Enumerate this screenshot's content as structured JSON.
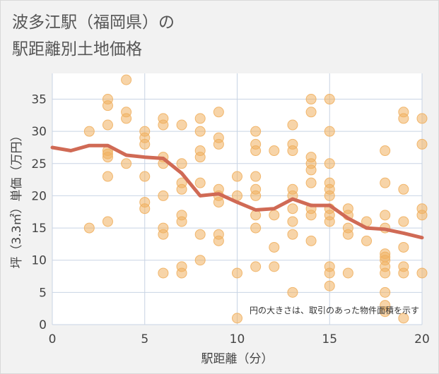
{
  "chart_data": {
    "type": "scatter",
    "title": "波多江駅（福岡県）の駅距離別土地価格",
    "title_lines": [
      "波多江駅（福岡県）の",
      "駅距離別土地価格"
    ],
    "xlabel": "駅距離（分）",
    "ylabel": "坪（3.3㎡）単価（万円）",
    "xlim": [
      0,
      20
    ],
    "ylim": [
      0,
      39
    ],
    "x_ticks": [
      0,
      5,
      10,
      15,
      20
    ],
    "y_ticks": [
      0,
      5,
      10,
      15,
      20,
      25,
      30,
      35
    ],
    "grid": true,
    "annotation": "円の大きさは、取引のあった物件面積を示す",
    "colors": {
      "bubble": "#f0b060",
      "trend": "#d06a55",
      "grid": "#c8d4e4",
      "plot_background": "#ffffff",
      "axis_text": "#444444"
    },
    "series": [
      {
        "kind": "bubble",
        "points": [
          [
            2,
            30
          ],
          [
            2,
            15
          ],
          [
            3,
            35
          ],
          [
            3,
            34
          ],
          [
            3,
            31
          ],
          [
            3,
            27
          ],
          [
            3,
            26.5
          ],
          [
            3,
            26
          ],
          [
            3,
            23
          ],
          [
            3,
            16
          ],
          [
            4,
            38
          ],
          [
            4,
            33
          ],
          [
            4,
            32
          ],
          [
            4,
            25
          ],
          [
            5,
            30
          ],
          [
            5,
            29
          ],
          [
            5,
            28
          ],
          [
            5,
            23
          ],
          [
            5,
            19
          ],
          [
            5,
            18
          ],
          [
            6,
            32
          ],
          [
            6,
            31
          ],
          [
            6,
            26
          ],
          [
            6,
            25
          ],
          [
            6,
            20
          ],
          [
            6,
            15
          ],
          [
            6,
            14
          ],
          [
            6,
            8
          ],
          [
            7,
            31
          ],
          [
            7,
            25
          ],
          [
            7,
            22
          ],
          [
            7,
            21
          ],
          [
            7,
            17
          ],
          [
            7,
            16
          ],
          [
            7,
            9
          ],
          [
            7,
            8
          ],
          [
            8,
            32
          ],
          [
            8,
            30
          ],
          [
            8,
            27
          ],
          [
            8,
            26
          ],
          [
            8,
            22
          ],
          [
            8,
            14
          ],
          [
            8,
            10
          ],
          [
            9,
            33
          ],
          [
            9,
            29
          ],
          [
            9,
            28
          ],
          [
            9,
            21
          ],
          [
            9,
            20
          ],
          [
            9,
            19
          ],
          [
            9,
            14
          ],
          [
            9,
            13
          ],
          [
            10,
            23
          ],
          [
            10,
            20
          ],
          [
            10,
            8
          ],
          [
            10,
            1
          ],
          [
            11,
            30
          ],
          [
            11,
            28
          ],
          [
            11,
            27
          ],
          [
            11,
            23
          ],
          [
            11,
            21
          ],
          [
            11,
            20
          ],
          [
            11,
            17
          ],
          [
            11,
            15
          ],
          [
            11,
            9
          ],
          [
            12,
            27
          ],
          [
            12,
            17
          ],
          [
            12,
            12
          ],
          [
            12,
            9
          ],
          [
            13,
            31
          ],
          [
            13,
            28
          ],
          [
            13,
            27
          ],
          [
            13,
            21
          ],
          [
            13,
            20
          ],
          [
            13,
            18
          ],
          [
            13,
            16
          ],
          [
            13,
            14
          ],
          [
            13,
            5
          ],
          [
            14,
            35
          ],
          [
            14,
            33
          ],
          [
            14,
            26
          ],
          [
            14,
            25
          ],
          [
            14,
            24
          ],
          [
            14,
            22
          ],
          [
            14,
            18
          ],
          [
            14,
            17
          ],
          [
            14,
            13
          ],
          [
            15,
            35
          ],
          [
            15,
            30
          ],
          [
            15,
            25
          ],
          [
            15,
            22
          ],
          [
            15,
            21
          ],
          [
            15,
            20
          ],
          [
            15,
            18
          ],
          [
            15,
            17
          ],
          [
            15,
            16
          ],
          [
            15,
            9
          ],
          [
            15,
            8
          ],
          [
            15,
            6
          ],
          [
            16,
            18
          ],
          [
            16,
            17
          ],
          [
            16,
            15
          ],
          [
            16,
            14
          ],
          [
            16,
            8
          ],
          [
            17,
            16
          ],
          [
            17,
            13
          ],
          [
            18,
            27
          ],
          [
            18,
            22
          ],
          [
            18,
            17
          ],
          [
            18,
            15
          ],
          [
            18,
            11
          ],
          [
            18,
            10.5
          ],
          [
            18,
            10
          ],
          [
            18,
            9
          ],
          [
            18,
            8
          ],
          [
            18,
            5
          ],
          [
            18,
            3
          ],
          [
            18,
            2
          ],
          [
            19,
            33
          ],
          [
            19,
            32
          ],
          [
            19,
            21
          ],
          [
            19,
            16
          ],
          [
            19,
            12
          ],
          [
            19,
            9
          ],
          [
            19,
            8
          ],
          [
            19,
            1
          ],
          [
            20,
            32
          ],
          [
            20,
            28
          ],
          [
            20,
            18
          ],
          [
            20,
            17
          ],
          [
            20,
            8
          ]
        ]
      },
      {
        "kind": "trend_line",
        "x": [
          0,
          1,
          2,
          3,
          4,
          5,
          6,
          7,
          8,
          9,
          10,
          11,
          12,
          13,
          14,
          15,
          16,
          17,
          18,
          19,
          20
        ],
        "y": [
          27.5,
          27,
          27.8,
          27.8,
          26.3,
          26,
          25.8,
          23.5,
          20,
          20.3,
          19,
          17.8,
          18,
          19.5,
          18.5,
          18.5,
          16.5,
          15,
          14.8,
          14.2,
          13.5
        ]
      }
    ]
  }
}
